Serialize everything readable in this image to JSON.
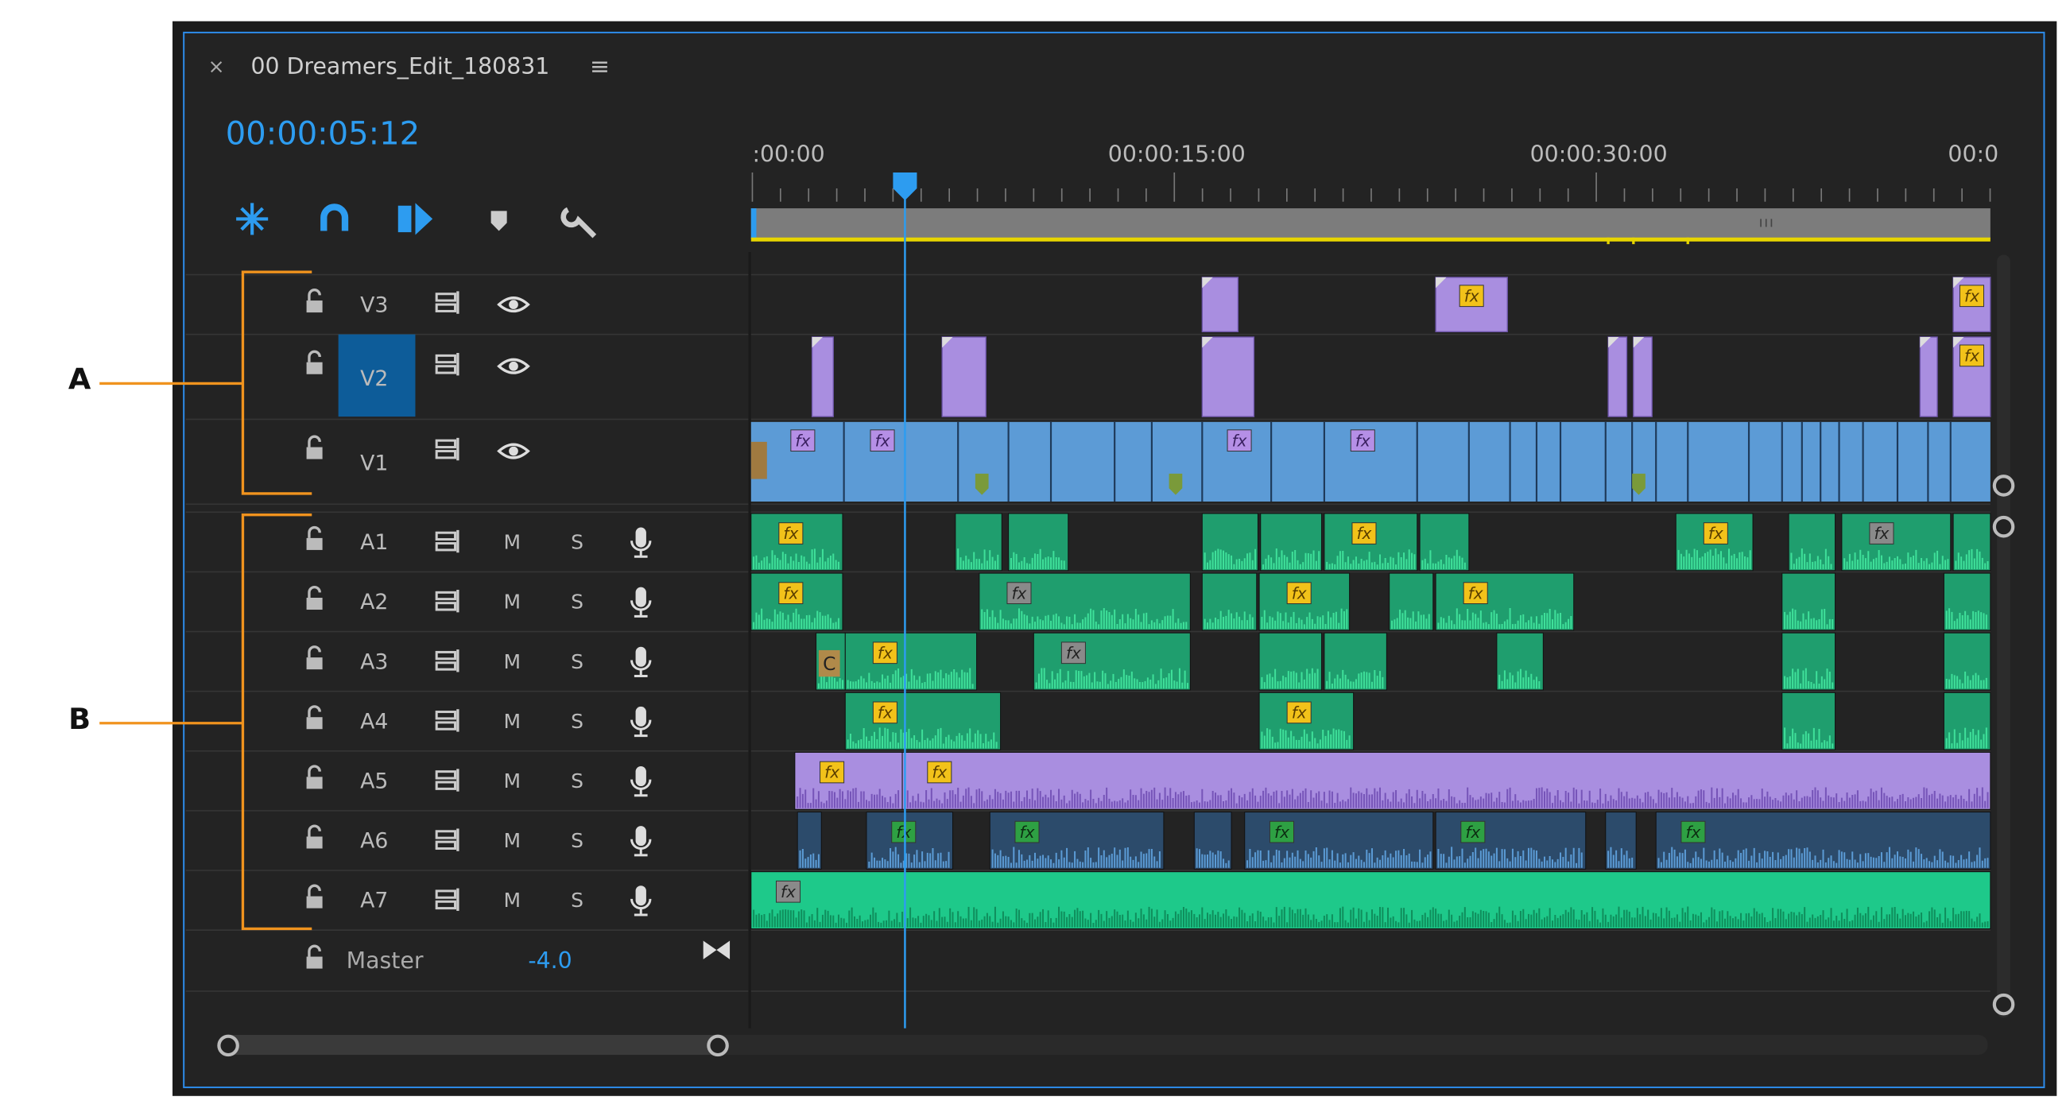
{
  "panel": {
    "close": "×",
    "title": "00 Dreamers_Edit_180831",
    "menu": "≡",
    "timecode": "00:00:05:12"
  },
  "ruler": {
    "labels": [
      ":00:00",
      "00:00:15:00",
      "00:00:30:00",
      "00:0"
    ]
  },
  "video_tracks": [
    {
      "name": "V3"
    },
    {
      "name": "V2"
    },
    {
      "name": "V1"
    }
  ],
  "audio_tracks": [
    {
      "name": "A1"
    },
    {
      "name": "A2"
    },
    {
      "name": "A3"
    },
    {
      "name": "A4"
    },
    {
      "name": "A5"
    },
    {
      "name": "A6"
    },
    {
      "name": "A7"
    }
  ],
  "audio_buttons": {
    "mute": "M",
    "solo": "S"
  },
  "master": {
    "name": "Master",
    "volume": "-4.0"
  },
  "clip_badge": "fx",
  "clip_letter": "C",
  "annotations": [
    "A",
    "B"
  ]
}
